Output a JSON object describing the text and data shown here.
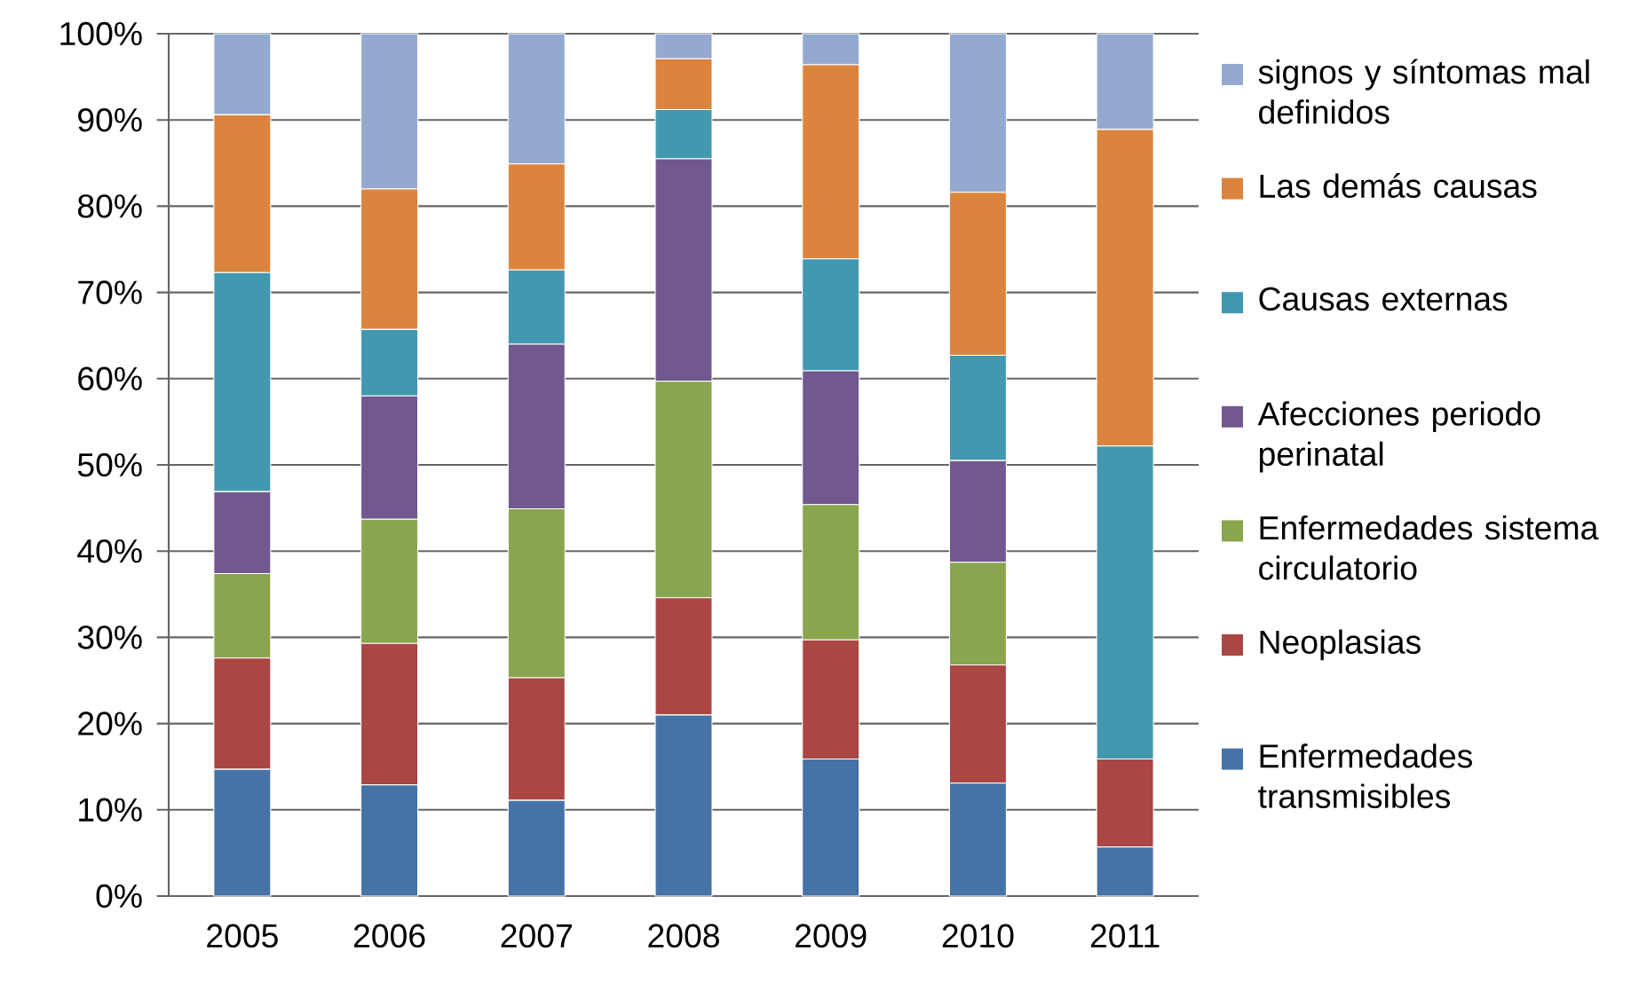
{
  "chart_data": {
    "type": "bar",
    "stacked": true,
    "categories": [
      "2005",
      "2006",
      "2007",
      "2008",
      "2009",
      "2010",
      "2011"
    ],
    "ylim": [
      0,
      100
    ],
    "yticks": [
      {
        "value": 0,
        "label": "0%"
      },
      {
        "value": 10,
        "label": "10%"
      },
      {
        "value": 20,
        "label": "20%"
      },
      {
        "value": 30,
        "label": "30%"
      },
      {
        "value": 40,
        "label": "40%"
      },
      {
        "value": 50,
        "label": "50%"
      },
      {
        "value": 60,
        "label": "60%"
      },
      {
        "value": 70,
        "label": "70%"
      },
      {
        "value": 80,
        "label": "80%"
      },
      {
        "value": 90,
        "label": "90%"
      },
      {
        "value": 100,
        "label": "100%"
      }
    ],
    "grid": "y",
    "legend": "right",
    "series": [
      {
        "name": "Enfermedades transmisibles",
        "color": "#4572a7",
        "values": [
          14.7,
          12.9,
          11.1,
          21.0,
          15.9,
          13.1,
          5.7
        ]
      },
      {
        "name": "Neoplasias",
        "color": "#aa4643",
        "values": [
          12.9,
          16.4,
          14.2,
          13.6,
          13.8,
          13.7,
          10.2
        ]
      },
      {
        "name": "Enfermedades sistema circulatorio",
        "color": "#89a54e",
        "values": [
          9.8,
          14.4,
          19.6,
          25.1,
          15.7,
          11.9,
          0
        ]
      },
      {
        "name": "Afecciones periodo perinatal",
        "color": "#71588f",
        "values": [
          9.5,
          14.3,
          19.1,
          25.8,
          15.5,
          11.8,
          0
        ]
      },
      {
        "name": "Causas externas",
        "color": "#4198af",
        "values": [
          25.4,
          7.7,
          8.6,
          5.7,
          13.0,
          12.2,
          36.3
        ]
      },
      {
        "name": "Las demás causas",
        "color": "#db843d",
        "values": [
          18.3,
          16.3,
          12.3,
          5.9,
          22.5,
          18.9,
          36.7
        ]
      },
      {
        "name": "signos y síntomas mal definidos",
        "color": "#93a9cf",
        "values": [
          9.4,
          18.0,
          15.1,
          2.9,
          3.6,
          18.4,
          11.1
        ]
      }
    ]
  }
}
